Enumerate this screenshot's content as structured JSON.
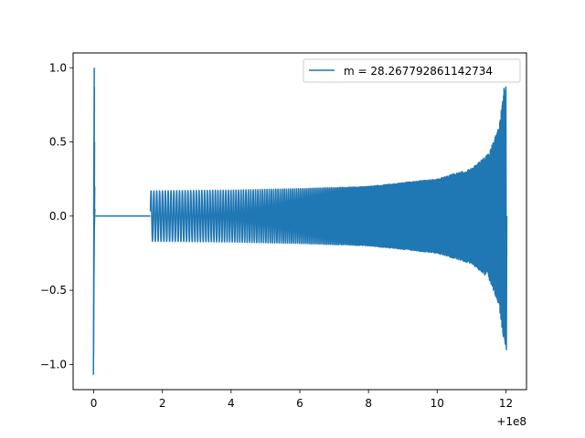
{
  "chart_data": {
    "type": "line",
    "title": "",
    "xlabel": "",
    "ylabel": "",
    "x_offset_label": "+1e8",
    "xlim": [
      -0.6,
      12.6
    ],
    "ylim": [
      -1.17,
      1.1
    ],
    "x_ticks": [
      0,
      2,
      4,
      6,
      8,
      10,
      12
    ],
    "x_tick_labels": [
      "0",
      "2",
      "4",
      "6",
      "8",
      "10",
      "12"
    ],
    "y_ticks": [
      -1.0,
      -0.5,
      0.0,
      0.5,
      1.0
    ],
    "y_tick_labels": [
      "−1.0",
      "−0.5",
      "0.0",
      "0.5",
      "1.0"
    ],
    "grid": false,
    "legend_position": "upper right",
    "series": [
      {
        "name": "m = 28.267792861142734",
        "color": "#1f77b4",
        "x_unit": "1e8 offset",
        "early_burst": {
          "x": 0.0,
          "min": -1.07,
          "max": 1.0
        },
        "quiet_segment": {
          "x": [
            0.05,
            1.65
          ],
          "y": 0.0
        },
        "oscillation": {
          "x_start": 1.65,
          "x_end": 12.0,
          "amplitude_points": [
            {
              "x": 1.65,
              "amplitude": 0.17
            },
            {
              "x": 4.0,
              "amplitude": 0.175
            },
            {
              "x": 6.0,
              "amplitude": 0.185
            },
            {
              "x": 8.0,
              "amplitude": 0.2
            },
            {
              "x": 10.0,
              "amplitude": 0.25
            },
            {
              "x": 11.0,
              "amplitude": 0.32
            },
            {
              "x": 11.5,
              "amplitude": 0.42
            },
            {
              "x": 11.8,
              "amplitude": 0.6
            },
            {
              "x": 11.95,
              "amplitude": 0.87
            }
          ],
          "final_min": -0.9
        }
      }
    ]
  }
}
